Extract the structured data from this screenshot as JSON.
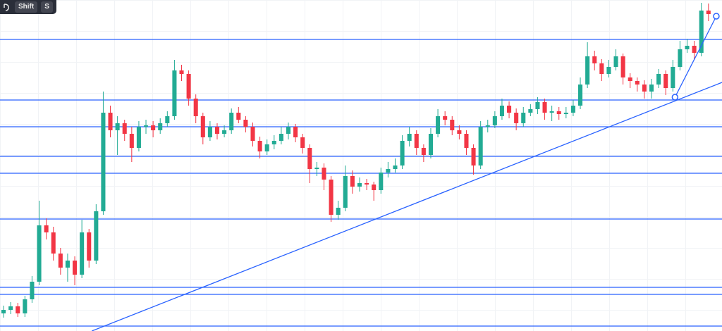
{
  "toolbar": {
    "keys": [
      "Shift",
      "S"
    ]
  },
  "chart_data": {
    "type": "candlestick",
    "up_color": "#22ab94",
    "down_color": "#f23645",
    "line_color": "#2962ff",
    "xlim": [
      -0.5,
      100.9
    ],
    "ylim": [
      0,
      470
    ],
    "candles": [
      [
        25,
        36,
        19,
        30
      ],
      [
        30,
        41,
        24,
        35
      ],
      [
        35,
        40,
        20,
        25
      ],
      [
        25,
        50,
        20,
        45
      ],
      [
        45,
        78,
        40,
        70
      ],
      [
        70,
        185,
        65,
        150
      ],
      [
        150,
        160,
        130,
        140
      ],
      [
        140,
        148,
        100,
        110
      ],
      [
        110,
        118,
        80,
        90
      ],
      [
        90,
        110,
        70,
        100
      ],
      [
        100,
        106,
        65,
        80
      ],
      [
        80,
        158,
        75,
        140
      ],
      [
        140,
        145,
        90,
        100
      ],
      [
        100,
        180,
        95,
        170
      ],
      [
        170,
        340,
        165,
        310
      ],
      [
        310,
        320,
        275,
        285
      ],
      [
        285,
        305,
        250,
        295
      ],
      [
        295,
        300,
        270,
        280
      ],
      [
        280,
        290,
        240,
        260
      ],
      [
        260,
        298,
        255,
        290
      ],
      [
        290,
        300,
        280,
        292
      ],
      [
        292,
        298,
        275,
        285
      ],
      [
        285,
        302,
        280,
        295
      ],
      [
        295,
        312,
        290,
        305
      ],
      [
        305,
        385,
        300,
        370
      ],
      [
        370,
        378,
        355,
        365
      ],
      [
        365,
        370,
        320,
        330
      ],
      [
        330,
        336,
        295,
        305
      ],
      [
        305,
        310,
        265,
        275
      ],
      [
        275,
        298,
        270,
        290
      ],
      [
        290,
        295,
        272,
        280
      ],
      [
        280,
        292,
        275,
        285
      ],
      [
        285,
        316,
        280,
        310
      ],
      [
        310,
        318,
        295,
        300
      ],
      [
        300,
        305,
        282,
        290
      ],
      [
        290,
        296,
        262,
        270
      ],
      [
        270,
        276,
        245,
        255
      ],
      [
        255,
        272,
        250,
        265
      ],
      [
        265,
        278,
        258,
        270
      ],
      [
        270,
        290,
        265,
        280
      ],
      [
        280,
        296,
        272,
        290
      ],
      [
        290,
        294,
        268,
        275
      ],
      [
        275,
        280,
        252,
        260
      ],
      [
        260,
        265,
        210,
        230
      ],
      [
        230,
        240,
        220,
        232
      ],
      [
        232,
        238,
        200,
        215
      ],
      [
        215,
        220,
        155,
        165
      ],
      [
        165,
        185,
        158,
        175
      ],
      [
        175,
        235,
        170,
        220
      ],
      [
        220,
        228,
        195,
        205
      ],
      [
        205,
        218,
        198,
        210
      ],
      [
        210,
        216,
        200,
        208
      ],
      [
        208,
        212,
        185,
        200
      ],
      [
        200,
        232,
        195,
        225
      ],
      [
        225,
        240,
        218,
        230
      ],
      [
        230,
        245,
        225,
        235
      ],
      [
        235,
        278,
        230,
        270
      ],
      [
        270,
        290,
        262,
        280
      ],
      [
        280,
        285,
        250,
        260
      ],
      [
        260,
        265,
        240,
        250
      ],
      [
        250,
        288,
        245,
        280
      ],
      [
        280,
        315,
        275,
        305
      ],
      [
        305,
        312,
        292,
        300
      ],
      [
        300,
        305,
        278,
        285
      ],
      [
        285,
        292,
        272,
        280
      ],
      [
        280,
        285,
        250,
        260
      ],
      [
        260,
        265,
        222,
        235
      ],
      [
        235,
        298,
        230,
        290
      ],
      [
        290,
        300,
        282,
        292
      ],
      [
        292,
        312,
        288,
        305
      ],
      [
        305,
        330,
        300,
        320
      ],
      [
        320,
        326,
        302,
        310
      ],
      [
        310,
        316,
        285,
        295
      ],
      [
        295,
        318,
        290,
        310
      ],
      [
        310,
        322,
        305,
        315
      ],
      [
        315,
        332,
        308,
        325
      ],
      [
        325,
        330,
        300,
        310
      ],
      [
        310,
        320,
        298,
        312
      ],
      [
        312,
        318,
        300,
        308
      ],
      [
        308,
        318,
        302,
        310
      ],
      [
        310,
        328,
        305,
        320
      ],
      [
        320,
        360,
        315,
        350
      ],
      [
        350,
        410,
        345,
        390
      ],
      [
        390,
        398,
        370,
        380
      ],
      [
        380,
        386,
        355,
        365
      ],
      [
        365,
        385,
        360,
        375
      ],
      [
        375,
        400,
        370,
        390
      ],
      [
        390,
        394,
        350,
        360
      ],
      [
        360,
        366,
        345,
        355
      ],
      [
        355,
        360,
        340,
        350
      ],
      [
        350,
        356,
        330,
        340
      ],
      [
        340,
        358,
        330,
        350
      ],
      [
        350,
        372,
        345,
        365
      ],
      [
        365,
        370,
        335,
        345
      ],
      [
        345,
        385,
        340,
        375
      ],
      [
        375,
        412,
        370,
        400
      ],
      [
        400,
        415,
        395,
        405
      ],
      [
        405,
        412,
        385,
        395
      ],
      [
        395,
        466,
        390,
        455
      ],
      [
        455,
        465,
        440,
        450
      ]
    ],
    "levels": [
      414,
      328,
      290,
      248,
      224,
      159,
      62,
      52,
      7
    ],
    "trendlines": [
      {
        "x": [
          12.4,
          100.9
        ],
        "y": [
          0,
          353
        ],
        "handles": false
      },
      {
        "x": [
          94.3,
          100.1
        ],
        "y": [
          332,
          447
        ],
        "handles": true
      }
    ]
  }
}
